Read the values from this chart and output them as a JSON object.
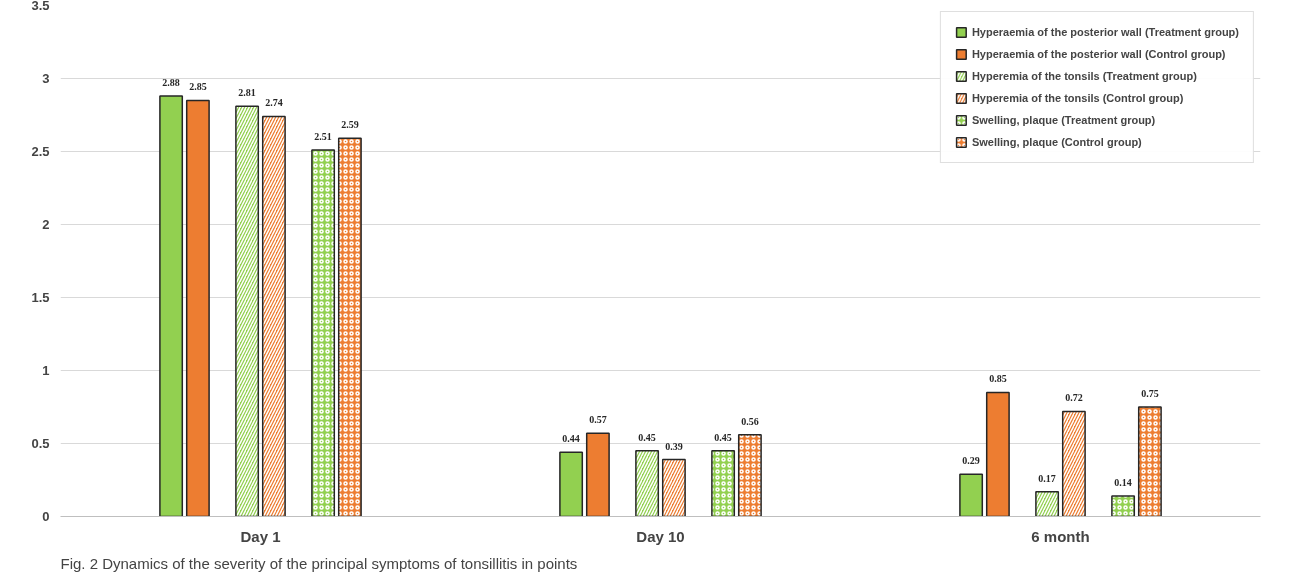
{
  "chart_data": {
    "type": "bar",
    "categories": [
      "Day 1",
      "Day 10",
      "6 month"
    ],
    "series": [
      {
        "name": "Hyperaemia of the posterior wall (Treatment group)",
        "color": "#92d050",
        "values": [
          2.88,
          0.44,
          0.29
        ]
      },
      {
        "name": "Hyperaemia of the posterior wall (Control group)",
        "color": "#ed7d31",
        "values": [
          2.85,
          0.57,
          0.85
        ]
      },
      {
        "name": "Hyperemia of the tonsils (Treatment group)",
        "color": "#92d050",
        "values": [
          2.81,
          0.45,
          0.17
        ]
      },
      {
        "name": "Hyperemia of the tonsils (Control group)",
        "color": "#ed7d31",
        "values": [
          2.74,
          0.39,
          0.72
        ]
      },
      {
        "name": "Swelling, plaque (Treatment group)",
        "color": "#92d050",
        "values": [
          2.51,
          0.45,
          0.14
        ]
      },
      {
        "name": "Swelling, plaque (Control group)",
        "color": "#ed7d31",
        "values": [
          2.59,
          0.56,
          0.75
        ]
      }
    ],
    "ylim": [
      0,
      3.5
    ],
    "yticks": [
      0,
      0.5,
      1,
      1.5,
      2,
      2.5,
      3,
      3.5
    ],
    "grid": "y",
    "legend": "top right",
    "data_labels": true,
    "annotations": [
      "Fig. 2 Dynamics of the severity of the principal symptoms of tonsillitis in points"
    ]
  }
}
